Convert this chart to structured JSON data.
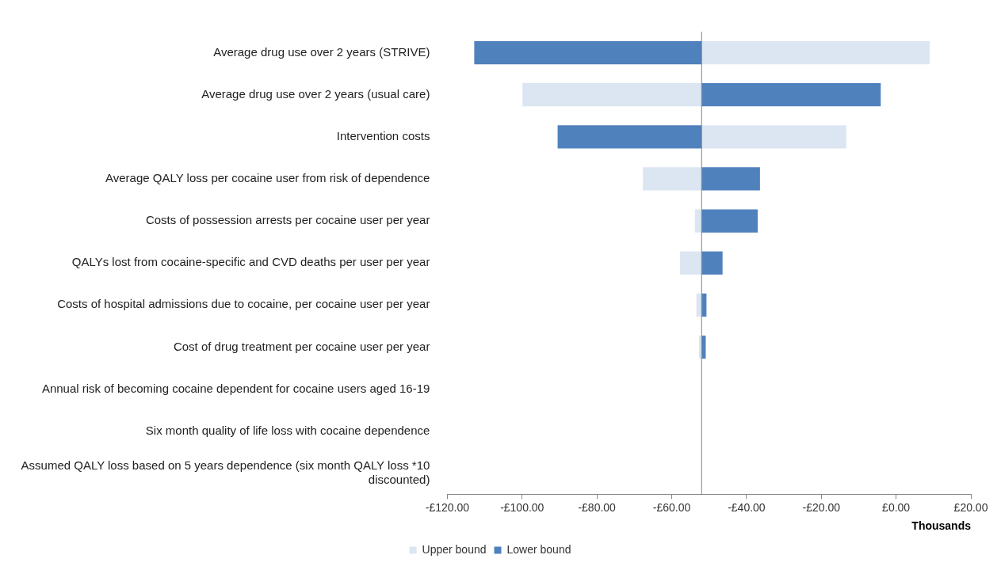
{
  "chart_data": {
    "type": "bar",
    "orientation": "horizontal",
    "stacked": false,
    "categories": [
      "Average drug use over 2 years (STRIVE)",
      "Average drug use over 2 years (usual care)",
      "Intervention costs",
      "Average QALY loss per cocaine user from risk of dependence",
      "Costs of possession arrests per cocaine user per year",
      "QALYs lost from cocaine-specific and CVD deaths per user per year",
      "Costs of hospital admissions due to cocaine, per cocaine user per year",
      "Cost of drug treatment per cocaine user per year",
      "Annual risk of becoming cocaine dependent for cocaine users aged 16-19",
      "Six month quality of life loss with cocaine dependence",
      "Assumed QALY loss based on 5 years dependence (six month QALY loss *10 discounted)"
    ],
    "series": [
      {
        "name": "Upper bound",
        "color": "#dce6f2",
        "base": [
          -52,
          -52,
          -52,
          -52,
          -52,
          -52,
          -52,
          -52,
          null,
          null,
          null
        ],
        "values": [
          61.0,
          -47.9,
          38.7,
          -15.7,
          -1.8,
          -5.8,
          -1.4,
          -0.7,
          null,
          null,
          null
        ]
      },
      {
        "name": "Lower bound",
        "color": "#4f81bd",
        "base": [
          -52,
          -52,
          -52,
          -52,
          -52,
          -52,
          -52,
          -52,
          null,
          null,
          null
        ],
        "values": [
          -60.8,
          47.9,
          -38.5,
          15.6,
          15.0,
          5.6,
          1.3,
          1.1,
          null,
          null,
          null
        ]
      }
    ],
    "xlim": [
      -120,
      20
    ],
    "xticks": [
      {
        "value": -120,
        "label": "-£120.00"
      },
      {
        "value": -100,
        "label": "-£100.00"
      },
      {
        "value": -80,
        "label": "-£80.00"
      },
      {
        "value": -60,
        "label": "-£60.00"
      },
      {
        "value": -40,
        "label": "-£40.00"
      },
      {
        "value": -20,
        "label": "-£20.00"
      },
      {
        "value": 0,
        "label": "£0.00"
      },
      {
        "value": 20,
        "label": "£20.00"
      }
    ],
    "xlabel": "Thousands",
    "ref_lines": [
      {
        "axis": "x",
        "value": -52,
        "color": "#808080"
      }
    ],
    "legend": "bottom"
  }
}
